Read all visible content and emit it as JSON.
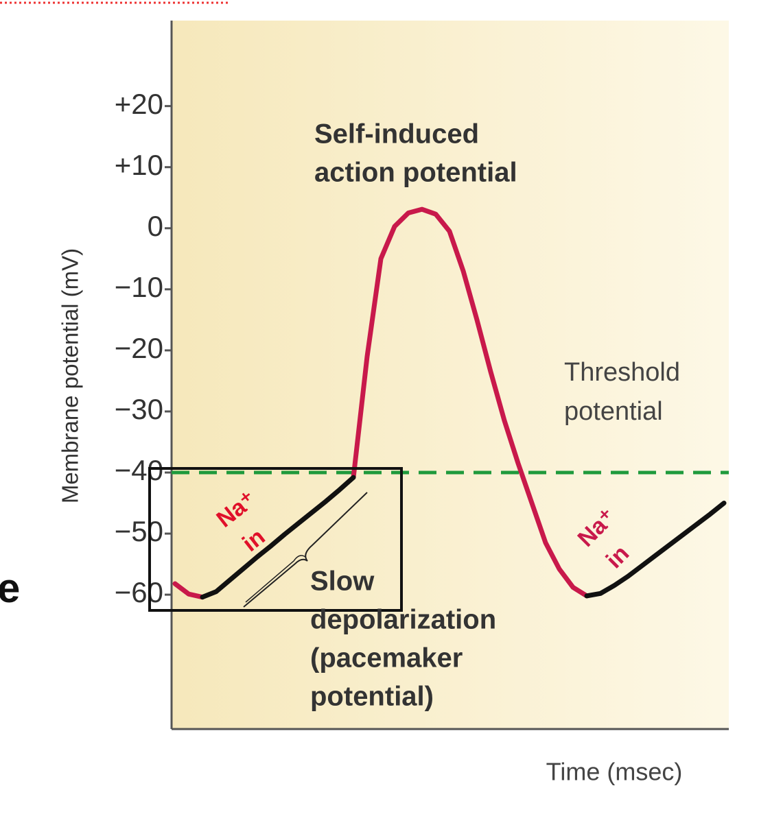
{
  "chart_data": {
    "type": "line",
    "y_label": "Membrane potential (mV)",
    "x_label": "Time (msec)",
    "categories": [
      null,
      null,
      null,
      null,
      null,
      null,
      null,
      null,
      null,
      null,
      null,
      null,
      null,
      null,
      null,
      null,
      null,
      null,
      null,
      null,
      null,
      null,
      null,
      null,
      null,
      null,
      null,
      null,
      null,
      null,
      null,
      null,
      null,
      null,
      null,
      null,
      null,
      null,
      null,
      null,
      null
    ],
    "series": [
      {
        "color": "#c8194b",
        "values": [
          -58.2,
          -59.9,
          -60.4,
          null,
          null,
          null,
          null,
          null,
          null,
          null,
          null,
          null,
          null,
          -40.8,
          -21,
          -5,
          0.3,
          2.5,
          3.1,
          2.3,
          -0.5,
          -7,
          -15,
          -23.5,
          -31.5,
          -38.5,
          -45,
          -51.5,
          -55.8,
          -58.8,
          -60.2,
          null,
          null,
          null,
          null,
          null,
          null,
          null,
          null,
          null,
          null
        ]
      },
      {
        "color": "#111111",
        "values": [
          null,
          null,
          -60.4,
          -59.5,
          -57.6,
          -55.7,
          -53.8,
          -52,
          -50.1,
          -48.3,
          -46.5,
          -44.7,
          -42.8,
          -40.8,
          null,
          null,
          null,
          null,
          null,
          null,
          null,
          null,
          null,
          null,
          null,
          null,
          null,
          null,
          null,
          null,
          -60.2,
          -59.8,
          -58.5,
          -57,
          -55.3,
          -53.6,
          -51.9,
          -50.2,
          -48.5,
          -46.8,
          -45
        ]
      }
    ],
    "ylim": [
      -82,
      34
    ],
    "yticks": [
      {
        "value": 20,
        "label": "+20"
      },
      {
        "value": 10,
        "label": "+10"
      },
      0,
      {
        "value": -10,
        "label": "−10"
      },
      {
        "value": -20,
        "label": "−20"
      },
      {
        "value": -30,
        "label": "−30"
      },
      {
        "value": -40,
        "label": "−40"
      },
      {
        "value": -50,
        "label": "−50"
      },
      {
        "value": -60,
        "label": "−60"
      }
    ],
    "threshold": {
      "value": -40,
      "color": "#1f9a3c"
    },
    "annotations": {
      "action_potential": [
        "Self-induced",
        "action potential"
      ],
      "threshold": [
        "Threshold",
        "potential"
      ],
      "slow": [
        "Slow",
        "depolarization",
        "(pacemaker",
        "potential)"
      ],
      "na_left": [
        "Na⁺",
        "in"
      ],
      "na_right": [
        "Na⁺",
        "in"
      ]
    },
    "cut_off_text": "e"
  }
}
